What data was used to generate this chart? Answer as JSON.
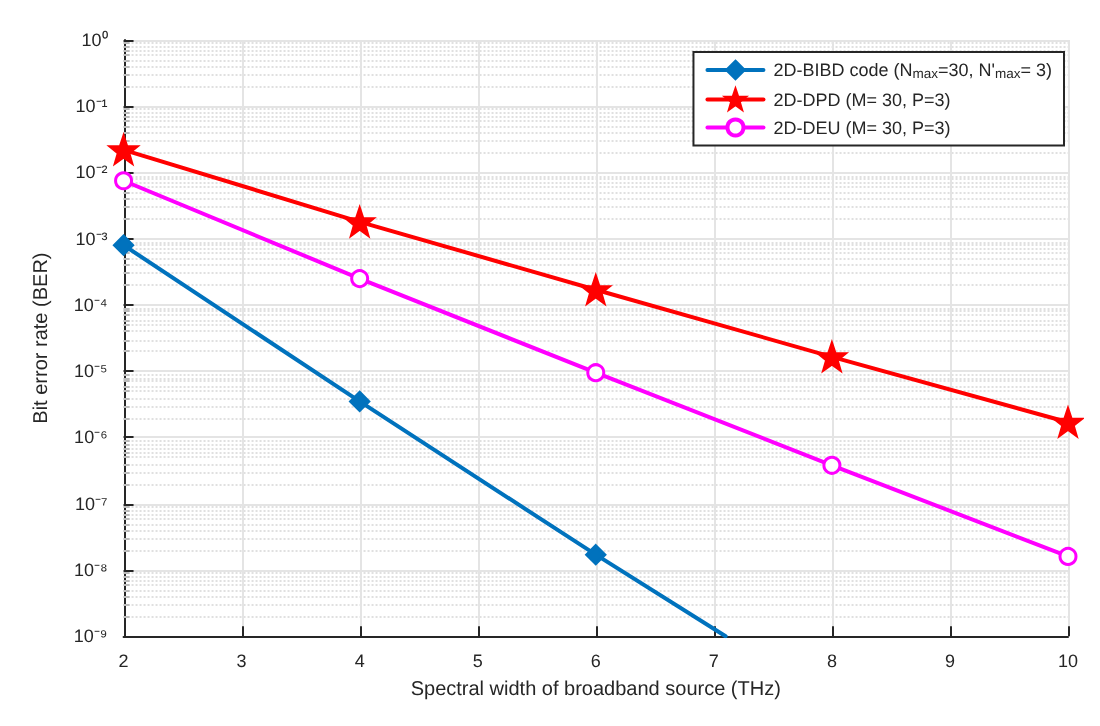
{
  "chart_data": {
    "type": "line",
    "xlabel": "Spectral width of broadband source (THz)",
    "ylabel": "Bit error rate (BER)",
    "xlim": [
      2,
      10
    ],
    "xticks": [
      2,
      3,
      4,
      5,
      6,
      7,
      8,
      9,
      10
    ],
    "ylim": [
      1e-09,
      1
    ],
    "log": "y",
    "yticks": [
      {
        "value": 1e-09,
        "label": "10⁻⁹"
      },
      {
        "value": 1e-08,
        "label": "10⁻⁸"
      },
      {
        "value": 1e-07,
        "label": "10⁻⁷"
      },
      {
        "value": 1e-06,
        "label": "10⁻⁶"
      },
      {
        "value": 1e-05,
        "label": "10⁻⁵"
      },
      {
        "value": 0.0001,
        "label": "10⁻⁴"
      },
      {
        "value": 0.001,
        "label": "10⁻³"
      },
      {
        "value": 0.01,
        "label": "10⁻²"
      },
      {
        "value": 0.1,
        "label": "10⁻¹"
      },
      {
        "value": 1,
        "label": "10⁰"
      }
    ],
    "grid": true,
    "legend": "top right",
    "series": [
      {
        "name": "2D-BIBD code (N$_{max}$=30, N'$_{max}$= 3)",
        "color": "#0072bd",
        "marker": "diamond",
        "x": [
          2,
          4,
          6,
          7.1
        ],
        "values": [
          0.0008,
          3.5e-06,
          1.7e-08,
          1e-09
        ]
      },
      {
        "name": "2D-DPD (M= 30, P=3)",
        "color": "#ff0000",
        "marker": "star",
        "x": [
          2,
          4,
          6,
          8,
          10
        ],
        "values": [
          0.022,
          0.0018,
          0.00017,
          1.65e-05,
          1.7e-06
        ]
      },
      {
        "name": "2D-DEU (M= 30, P=3)",
        "color": "#ff00ff",
        "marker": "circle",
        "x": [
          2,
          4,
          6,
          8,
          10
        ],
        "values": [
          0.0075,
          0.00025,
          9.5e-06,
          3.8e-07,
          1.6e-08
        ]
      }
    ]
  }
}
